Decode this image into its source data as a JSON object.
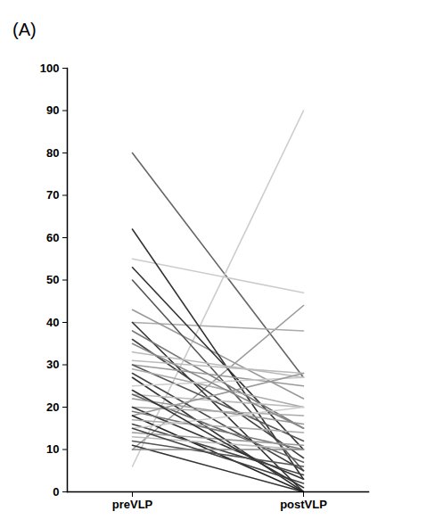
{
  "chart_data": {
    "type": "line",
    "title": "(A)",
    "categories": [
      "preVLP",
      "postVLP"
    ],
    "ylim": [
      0,
      100
    ],
    "yticks": [
      0,
      10,
      20,
      30,
      40,
      50,
      60,
      70,
      80,
      90,
      100
    ],
    "series": [
      {
        "color": "#666666",
        "values": [
          80,
          27
        ]
      },
      {
        "color": "#cccccc",
        "values": [
          6,
          90
        ]
      },
      {
        "color": "#cccccc",
        "values": [
          55,
          47
        ]
      },
      {
        "color": "#999999",
        "values": [
          10,
          44
        ]
      },
      {
        "color": "#aaaaaa",
        "values": [
          40,
          38
        ]
      },
      {
        "color": "#999999",
        "values": [
          43,
          22
        ]
      },
      {
        "color": "#333333",
        "values": [
          62,
          3
        ]
      },
      {
        "color": "#333333",
        "values": [
          53,
          10
        ]
      },
      {
        "color": "#555555",
        "values": [
          50,
          5
        ]
      },
      {
        "color": "#333333",
        "values": [
          40,
          0
        ]
      },
      {
        "color": "#777777",
        "values": [
          38,
          15
        ]
      },
      {
        "color": "#444444",
        "values": [
          36,
          8
        ]
      },
      {
        "color": "#bbbbbb",
        "values": [
          33,
          27
        ]
      },
      {
        "color": "#bbbbbb",
        "values": [
          31,
          28
        ]
      },
      {
        "color": "#999999",
        "values": [
          30,
          25
        ]
      },
      {
        "color": "#555555",
        "values": [
          30,
          12
        ]
      },
      {
        "color": "#aaaaaa",
        "values": [
          29,
          20
        ]
      },
      {
        "color": "#444444",
        "values": [
          28,
          5
        ]
      },
      {
        "color": "#333333",
        "values": [
          27,
          0
        ]
      },
      {
        "color": "#cccccc",
        "values": [
          25,
          27
        ]
      },
      {
        "color": "#bbbbbb",
        "values": [
          23,
          20
        ]
      },
      {
        "color": "#666666",
        "values": [
          23,
          7
        ]
      },
      {
        "color": "#999999",
        "values": [
          22,
          16
        ]
      },
      {
        "color": "#aaaaaa",
        "values": [
          20,
          18
        ]
      },
      {
        "color": "#333333",
        "values": [
          20,
          3
        ]
      },
      {
        "color": "#777777",
        "values": [
          19,
          10
        ]
      },
      {
        "color": "#999999",
        "values": [
          18,
          28
        ]
      },
      {
        "color": "#222222",
        "values": [
          18,
          0
        ]
      },
      {
        "color": "#aaaaaa",
        "values": [
          17,
          14
        ]
      },
      {
        "color": "#444444",
        "values": [
          16,
          4
        ]
      },
      {
        "color": "#cccccc",
        "values": [
          15,
          20
        ]
      },
      {
        "color": "#999999",
        "values": [
          14,
          11
        ]
      },
      {
        "color": "#bbbbbb",
        "values": [
          13,
          10
        ]
      },
      {
        "color": "#555555",
        "values": [
          12,
          6
        ]
      },
      {
        "color": "#333333",
        "values": [
          11,
          0
        ]
      },
      {
        "color": "#888888",
        "values": [
          10,
          10
        ]
      },
      {
        "color": "#444444",
        "values": [
          15,
          2
        ]
      },
      {
        "color": "#888888",
        "values": [
          35,
          15
        ]
      },
      {
        "color": "#333333",
        "values": [
          24,
          1
        ]
      }
    ]
  }
}
